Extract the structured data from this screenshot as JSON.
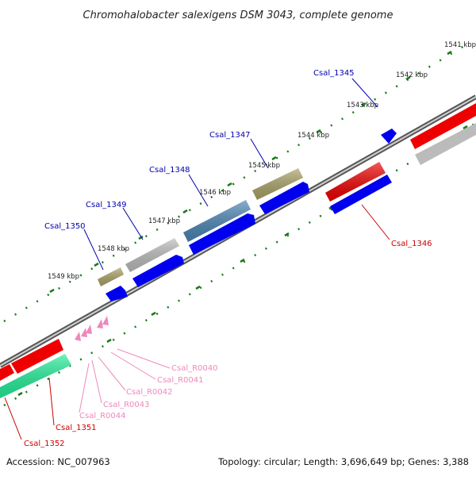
{
  "title": "Chromohalobacter salexigens DSM 3043, complete genome",
  "footer": {
    "accession": "Accession: NC_007963",
    "summary": "Topology: circular; Length: 3,696,649 bp; Genes: 3,388"
  },
  "colors": {
    "gene_label": "#0000aa",
    "rev_gene_label": "#cc0000",
    "rna_label": "#ee88bb",
    "tick": "#1a7a1a",
    "backbone": "#888888",
    "cds_blue": "#0000ee",
    "cds_red": "#ee0000",
    "cds_gray": "#bbbbbb",
    "cds_olive": "#aaa266",
    "cds_steel": "#4a84b4",
    "cds_green": "#22ee99",
    "rna_pink": "#ee88bb"
  },
  "ticks": [
    "1541 kbp",
    "1542 kbp",
    "1543 kbp",
    "1544 kbp",
    "1545 kbp",
    "1546 kbp",
    "1547 kbp",
    "1548 kbp",
    "1549 kbp"
  ],
  "labels": {
    "forward": [
      "Csal_1345",
      "Csal_1347",
      "Csal_1348",
      "Csal_1349",
      "Csal_1350"
    ],
    "reverse": [
      "Csal_1346",
      "Csal_1351",
      "Csal_1352"
    ],
    "rna": [
      "Csal_R0040",
      "Csal_R0041",
      "Csal_R0042",
      "Csal_R0043",
      "Csal_R0044"
    ]
  }
}
